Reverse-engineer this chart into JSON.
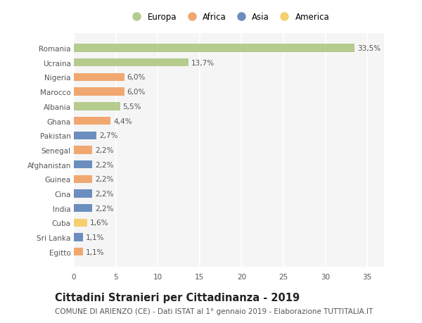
{
  "countries": [
    "Romania",
    "Ucraina",
    "Nigeria",
    "Marocco",
    "Albania",
    "Ghana",
    "Pakistan",
    "Senegal",
    "Afghanistan",
    "Guinea",
    "Cina",
    "India",
    "Cuba",
    "Sri Lanka",
    "Egitto"
  ],
  "values": [
    33.5,
    13.7,
    6.0,
    6.0,
    5.5,
    4.4,
    2.7,
    2.2,
    2.2,
    2.2,
    2.2,
    2.2,
    1.6,
    1.1,
    1.1
  ],
  "labels": [
    "33,5%",
    "13,7%",
    "6,0%",
    "6,0%",
    "5,5%",
    "4,4%",
    "2,7%",
    "2,2%",
    "2,2%",
    "2,2%",
    "2,2%",
    "2,2%",
    "1,6%",
    "1,1%",
    "1,1%"
  ],
  "continents": [
    "Europa",
    "Europa",
    "Africa",
    "Africa",
    "Europa",
    "Africa",
    "Asia",
    "Africa",
    "Asia",
    "Africa",
    "Asia",
    "Asia",
    "America",
    "Asia",
    "Africa"
  ],
  "continent_colors": {
    "Europa": "#b5cc8e",
    "Africa": "#f0a870",
    "Asia": "#6b8ebf",
    "America": "#f5d06e"
  },
  "legend_order": [
    "Europa",
    "Africa",
    "Asia",
    "America"
  ],
  "xlim": [
    0,
    37
  ],
  "xticks": [
    0,
    5,
    10,
    15,
    20,
    25,
    30,
    35
  ],
  "title": "Cittadini Stranieri per Cittadinanza - 2019",
  "subtitle": "COMUNE DI ARIENZO (CE) - Dati ISTAT al 1° gennaio 2019 - Elaborazione TUTTITALIA.IT",
  "background_color": "#ffffff",
  "plot_bg_color": "#f5f5f5",
  "bar_height": 0.55,
  "title_fontsize": 10.5,
  "subtitle_fontsize": 7.5,
  "label_fontsize": 7.5,
  "tick_fontsize": 7.5,
  "legend_fontsize": 8.5
}
